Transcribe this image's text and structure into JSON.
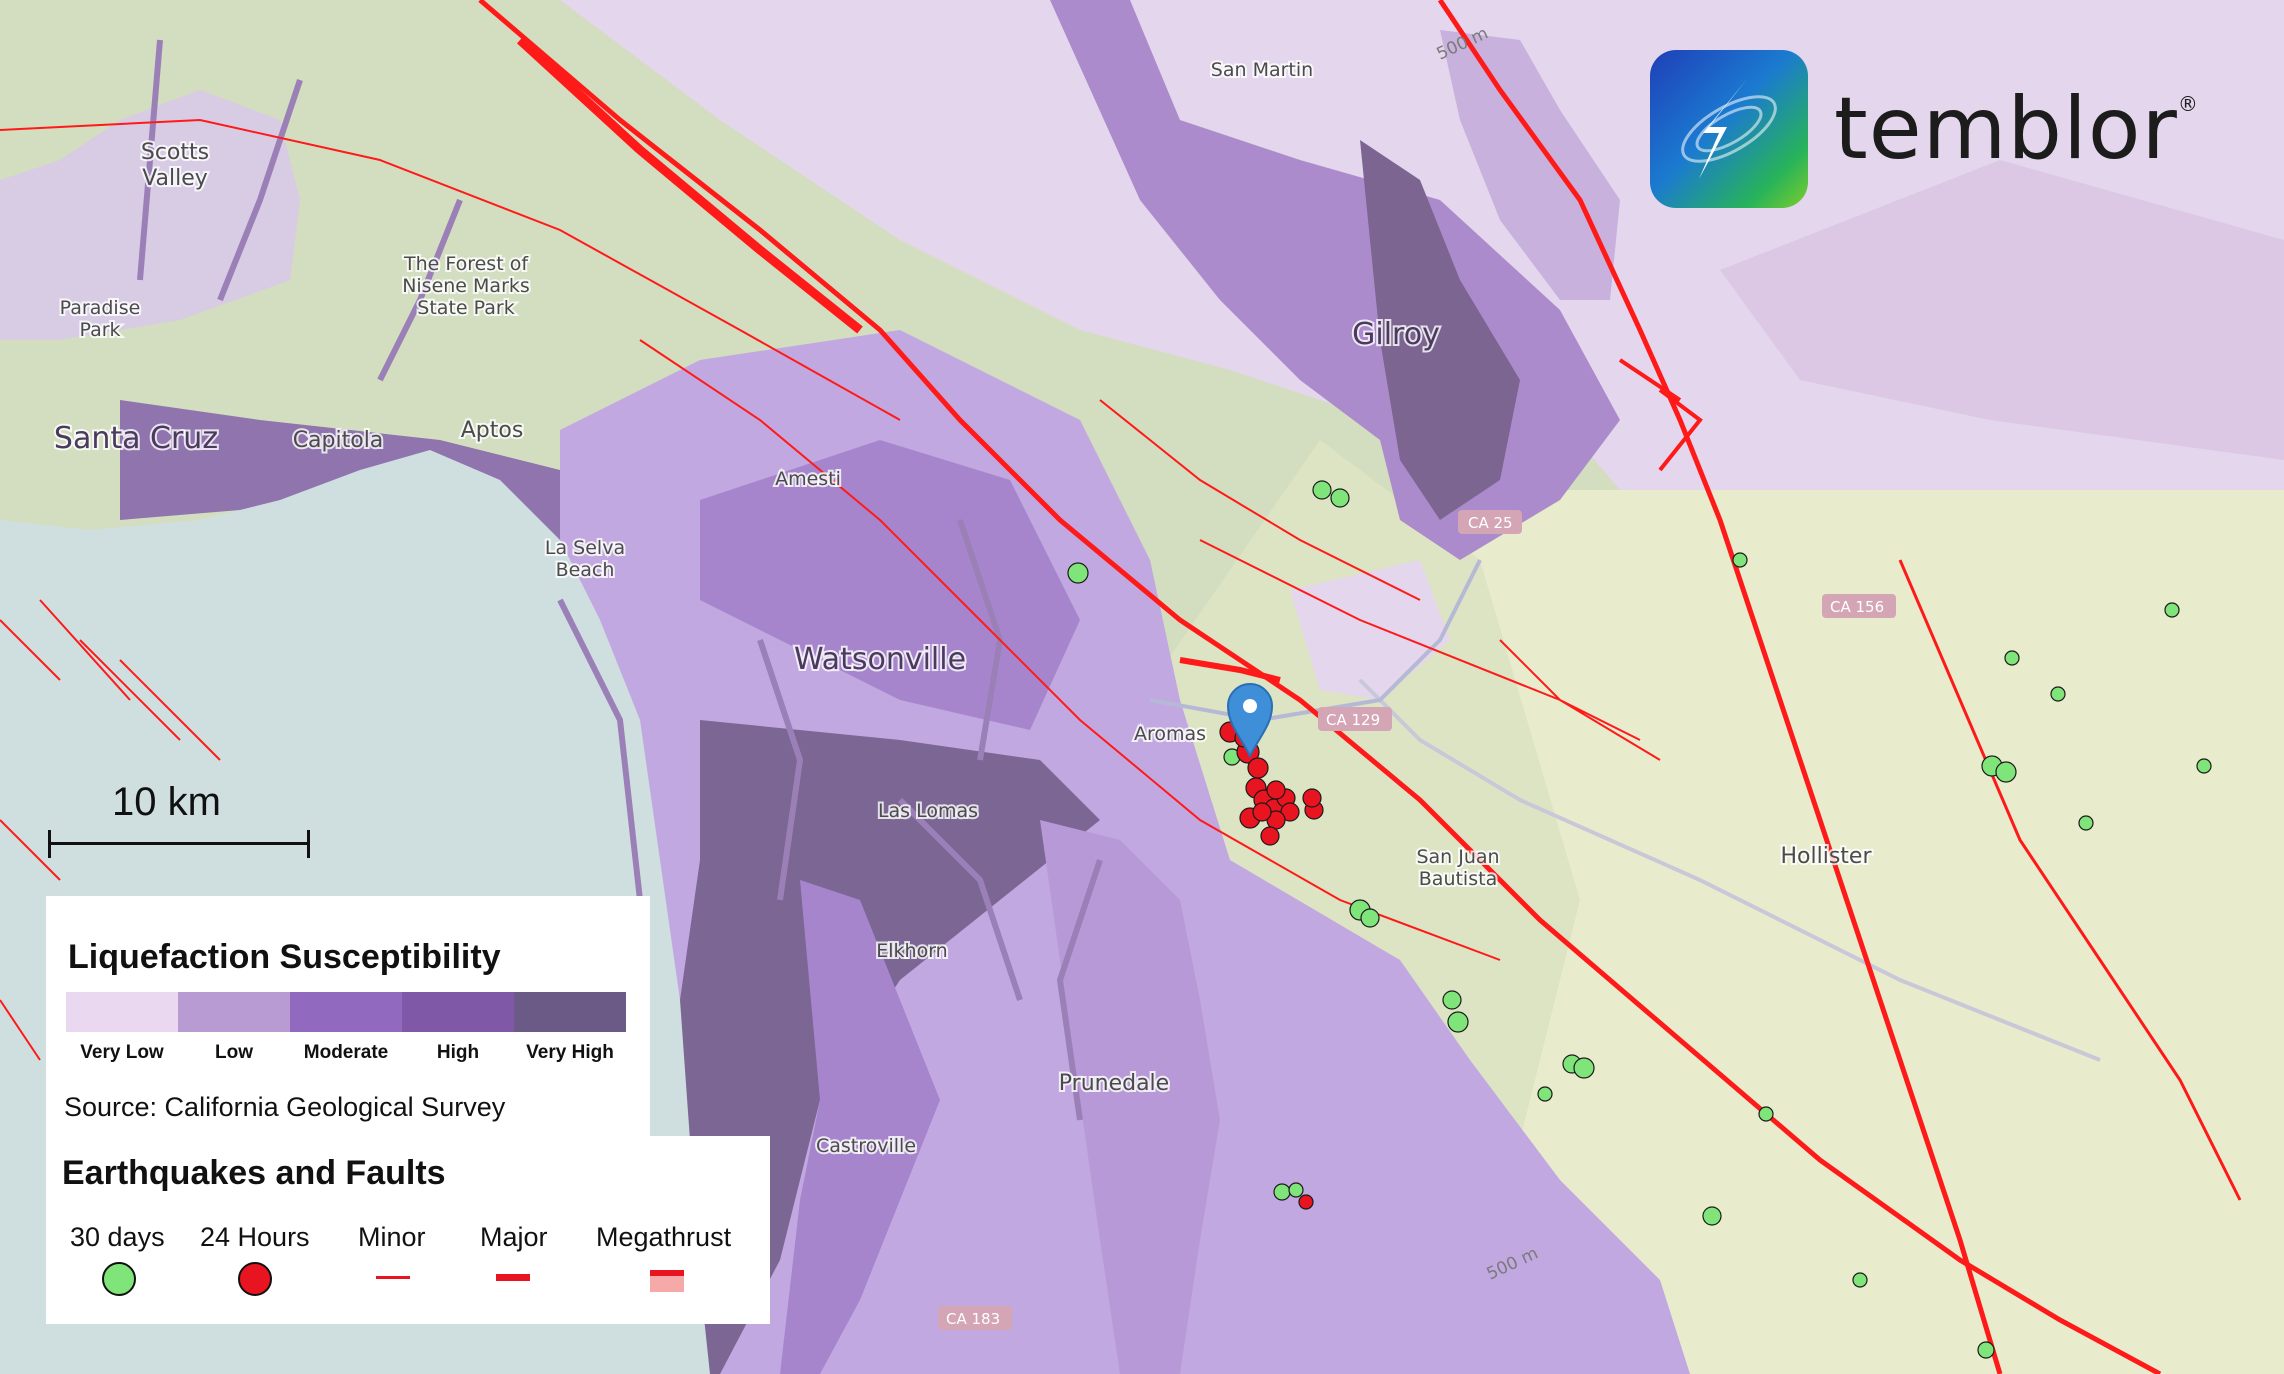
{
  "map": {
    "places": [
      {
        "name": "Scotts\nValley"
      },
      {
        "name": "The Forest of\nNisene Marks\nState Park"
      },
      {
        "name": "Paradise\nPark"
      },
      {
        "name": "Santa Cruz"
      },
      {
        "name": "Capitola"
      },
      {
        "name": "Aptos"
      },
      {
        "name": "Amesti"
      },
      {
        "name": "La Selva\nBeach"
      },
      {
        "name": "Watsonville"
      },
      {
        "name": "Aromas"
      },
      {
        "name": "Las Lomas"
      },
      {
        "name": "Elkhorn"
      },
      {
        "name": "Prunedale"
      },
      {
        "name": "Castroville"
      },
      {
        "name": "San Martin"
      },
      {
        "name": "Gilroy"
      },
      {
        "name": "San Juan\nBautista"
      },
      {
        "name": "Hollister"
      }
    ],
    "roads": [
      "CA 25",
      "CA 156",
      "CA 129",
      "CA 183"
    ],
    "contours": [
      "500 m",
      "500 m"
    ],
    "marker_icon": "location-pin-icon"
  },
  "logo": {
    "name": "temblor",
    "mark": "®",
    "icon": "temblor-logo-icon"
  },
  "scale": {
    "label": "10 km"
  },
  "legend_liquefaction": {
    "title": "Liquefaction Susceptibility",
    "levels": [
      {
        "label": "Very Low",
        "color": "#e9d8ef"
      },
      {
        "label": "Low",
        "color": "#b89bd2"
      },
      {
        "label": "Moderate",
        "color": "#9169bf"
      },
      {
        "label": "High",
        "color": "#7f58a8"
      },
      {
        "label": "Very High",
        "color": "#6c5a86"
      }
    ],
    "source": "Source: California Geological Survey"
  },
  "legend_earthquakes": {
    "title": "Earthquakes and Faults",
    "items": [
      {
        "label": "30 days",
        "symbol": "green-circle",
        "color": "#7fe57a"
      },
      {
        "label": "24 Hours",
        "symbol": "red-circle",
        "color": "#e8141f"
      },
      {
        "label": "Minor",
        "symbol": "thin-line",
        "color": "#e8141f"
      },
      {
        "label": "Major",
        "symbol": "thick-line",
        "color": "#e8141f"
      },
      {
        "label": "Megathrust",
        "symbol": "band",
        "color": "#e8141f"
      }
    ]
  },
  "colors": {
    "ocean": "#cfdfe0",
    "terrain": "#d6dfc4",
    "valley": "#eaeed8",
    "fault": "#ff1a1a",
    "quake_30d": "#7fe57a",
    "quake_24h": "#e8141f",
    "marker": "#3f8fd8"
  }
}
